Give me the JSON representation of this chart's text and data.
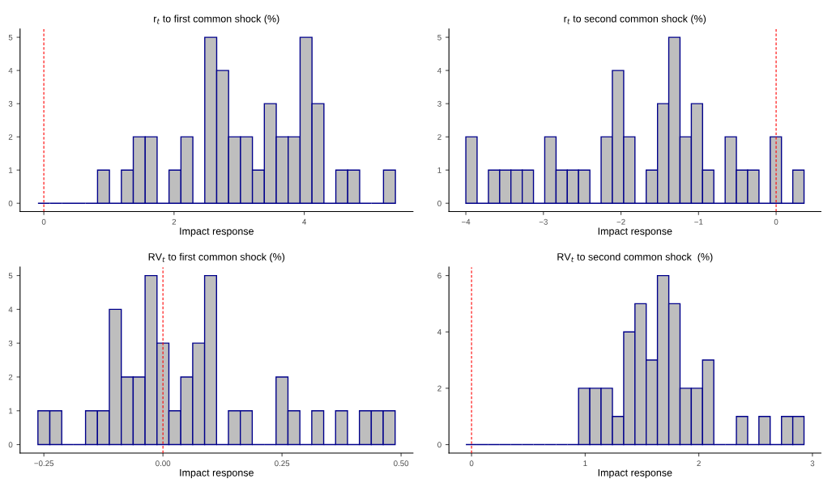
{
  "chart_data": [
    {
      "type": "histogram",
      "title": "r$_{t}$ to first common shock (%)",
      "xlabel": "Impact response",
      "bins": [
        -0.09,
        0.093,
        0.276,
        0.459,
        0.642,
        0.825,
        1.008,
        1.191,
        1.374,
        1.557,
        1.74,
        1.923,
        2.106,
        2.289,
        2.472,
        2.655,
        2.838,
        3.021,
        3.204,
        3.387,
        3.57,
        3.753,
        3.936,
        4.119,
        4.302,
        4.485,
        4.668,
        4.851,
        5.034,
        5.217,
        5.4
      ],
      "values": [
        0,
        0,
        0,
        0,
        0,
        1,
        0,
        1,
        2,
        2,
        0,
        1,
        2,
        0,
        5,
        4,
        2,
        2,
        1,
        3,
        2,
        2,
        5,
        3,
        0,
        1,
        1,
        0,
        0,
        1
      ],
      "colors": [
        "#00008b",
        "#00008b",
        "#00008b",
        "#00008b",
        "#00008b",
        "#bebebe",
        "#00008b",
        "#bebebe",
        "#bebebe",
        "#bebebe",
        "#00008b",
        "#bebebe",
        "#bebebe",
        "#00008b",
        "#bebebe",
        "#bebebe",
        "#bebebe",
        "#bebebe",
        "#bebebe",
        "#bebebe",
        "#bebebe",
        "#bebebe",
        "#bebebe",
        "#bebebe",
        "#00008b",
        "#bebebe",
        "#bebebe",
        "#00008b",
        "#00008b",
        "#bebebe"
      ],
      "xlim": [
        -0.365,
        5.67
      ],
      "xticks": [
        0,
        2,
        4
      ],
      "ylim": [
        -0.25,
        5.25
      ],
      "yticks": [
        0,
        1,
        2,
        3,
        4,
        5
      ],
      "ref_lines": [
        {
          "axis": "x",
          "value": 0,
          "color": "#ff0000",
          "line_style": "dashed"
        }
      ],
      "grid": false,
      "legend": false
    },
    {
      "type": "histogram",
      "title": "r$_{t}$ to second common shock (%)",
      "xlabel": "Impact response",
      "bins": [
        -4.0,
        -3.855,
        -3.709,
        -3.564,
        -3.419,
        -3.273,
        -3.128,
        -2.983,
        -2.837,
        -2.692,
        -2.547,
        -2.401,
        -2.256,
        -2.111,
        -1.965,
        -1.82,
        -1.675,
        -1.529,
        -1.384,
        -1.239,
        -1.093,
        -0.948,
        -0.803,
        -0.657,
        -0.512,
        -0.367,
        -0.221,
        -0.076,
        0.069,
        0.215,
        0.36
      ],
      "values": [
        2,
        0,
        1,
        1,
        1,
        1,
        0,
        2,
        1,
        1,
        1,
        0,
        2,
        4,
        2,
        0,
        1,
        3,
        5,
        2,
        3,
        1,
        0,
        2,
        1,
        1,
        0,
        2,
        0,
        1
      ],
      "colors": [
        "#bebebe",
        "#00008b",
        "#bebebe",
        "#bebebe",
        "#bebebe",
        "#bebebe",
        "#00008b",
        "#bebebe",
        "#bebebe",
        "#bebebe",
        "#bebebe",
        "#00008b",
        "#bebebe",
        "#bebebe",
        "#bebebe",
        "#00008b",
        "#bebebe",
        "#bebebe",
        "#bebebe",
        "#bebebe",
        "#bebebe",
        "#bebebe",
        "#00008b",
        "#bebebe",
        "#bebebe",
        "#bebebe",
        "#00008b",
        "#bebebe",
        "#00008b",
        "#bebebe"
      ],
      "xlim": [
        -4.218,
        0.578
      ],
      "xticks": [
        {
          "value": -4,
          "label": "−4"
        },
        {
          "value": -3,
          "label": "−3"
        },
        {
          "value": -2,
          "label": "−2"
        },
        {
          "value": -1,
          "label": "−1"
        },
        0
      ],
      "ylim": [
        -0.25,
        5.25
      ],
      "yticks": [
        0,
        1,
        2,
        3,
        4,
        5
      ],
      "ref_lines": [
        {
          "axis": "x",
          "value": 0,
          "color": "#ff0000",
          "line_style": "dashed"
        }
      ],
      "grid": false,
      "legend": false
    },
    {
      "type": "histogram",
      "title": "RV$_{t}$ to first common shock (%)",
      "xlabel": "Impact response",
      "bins": [
        -0.2625,
        -0.2375,
        -0.2125,
        -0.1875,
        -0.1625,
        -0.1375,
        -0.1125,
        -0.0875,
        -0.0625,
        -0.0375,
        -0.0125,
        0.0125,
        0.0375,
        0.0625,
        0.0875,
        0.1125,
        0.1375,
        0.1625,
        0.1875,
        0.2125,
        0.2375,
        0.2625,
        0.2875,
        0.3125,
        0.3375,
        0.3625,
        0.3875,
        0.4125,
        0.4375,
        0.4625,
        0.4875
      ],
      "values": [
        1,
        1,
        0,
        0,
        1,
        1,
        4,
        2,
        2,
        5,
        3,
        1,
        2,
        3,
        5,
        0,
        1,
        1,
        0,
        0,
        2,
        1,
        0,
        1,
        0,
        1,
        0,
        1,
        1,
        1
      ],
      "colors": [
        "#bebebe",
        "#bebebe",
        "#00008b",
        "#00008b",
        "#bebebe",
        "#bebebe",
        "#bebebe",
        "#bebebe",
        "#bebebe",
        "#bebebe",
        "#bebebe",
        "#bebebe",
        "#bebebe",
        "#bebebe",
        "#bebebe",
        "#00008b",
        "#bebebe",
        "#bebebe",
        "#00008b",
        "#00008b",
        "#bebebe",
        "#bebebe",
        "#00008b",
        "#bebebe",
        "#00008b",
        "#bebebe",
        "#00008b",
        "#bebebe",
        "#bebebe",
        "#bebebe"
      ],
      "xlim": [
        -0.3,
        0.525
      ],
      "xticks": [
        {
          "value": -0.25,
          "label": "−0.25"
        },
        {
          "value": 0,
          "label": "0.00"
        },
        0.25,
        {
          "value": 0.5,
          "label": "0.50"
        }
      ],
      "ylim": [
        -0.25,
        5.25
      ],
      "yticks": [
        0,
        1,
        2,
        3,
        4,
        5
      ],
      "ref_lines": [
        {
          "axis": "x",
          "value": 0,
          "color": "#ff0000",
          "line_style": "dashed"
        }
      ],
      "grid": false,
      "legend": false
    },
    {
      "type": "histogram",
      "title": "RV$_{t}$ to second common shock  (%)",
      "xlabel": "Impact response",
      "bins": [
        -0.05,
        0.049,
        0.148,
        0.248,
        0.347,
        0.446,
        0.545,
        0.644,
        0.744,
        0.843,
        0.942,
        1.041,
        1.14,
        1.24,
        1.339,
        1.438,
        1.537,
        1.636,
        1.736,
        1.835,
        1.934,
        2.033,
        2.132,
        2.232,
        2.331,
        2.43,
        2.529,
        2.628,
        2.728,
        2.827,
        2.926
      ],
      "values": [
        0,
        0,
        0,
        0,
        0,
        0,
        0,
        0,
        0,
        0,
        2,
        2,
        2,
        1,
        4,
        5,
        3,
        6,
        5,
        2,
        2,
        3,
        0,
        0,
        1,
        0,
        1,
        0,
        1,
        1
      ],
      "colors": [
        "#00008b",
        "#00008b",
        "#00008b",
        "#00008b",
        "#00008b",
        "#00008b",
        "#00008b",
        "#00008b",
        "#00008b",
        "#00008b",
        "#bebebe",
        "#bebebe",
        "#bebebe",
        "#bebebe",
        "#bebebe",
        "#bebebe",
        "#bebebe",
        "#bebebe",
        "#bebebe",
        "#bebebe",
        "#bebebe",
        "#bebebe",
        "#00008b",
        "#00008b",
        "#bebebe",
        "#00008b",
        "#bebebe",
        "#00008b",
        "#bebebe",
        "#bebebe"
      ],
      "xlim": [
        -0.199,
        3.075
      ],
      "xticks": [
        0,
        1,
        2,
        3
      ],
      "ylim": [
        -0.3,
        6.3
      ],
      "yticks": [
        0,
        2,
        4,
        6
      ],
      "ref_lines": [
        {
          "axis": "x",
          "value": 0,
          "color": "#ff0000",
          "line_style": "dashed"
        }
      ],
      "grid": false,
      "legend": false
    }
  ]
}
